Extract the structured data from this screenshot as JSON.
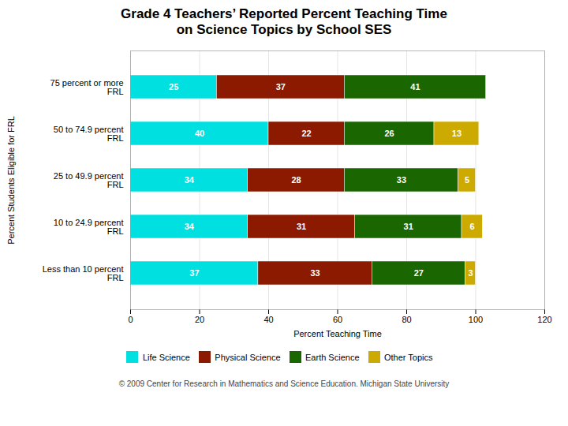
{
  "chart_data": {
    "type": "bar",
    "orientation": "horizontal",
    "stacked": true,
    "title": "Grade 4 Teachers’ Reported Percent Teaching Time",
    "subtitle": "on Science Topics by School SES",
    "caption": "© 2009 Center for Research in Mathematics and Science Education.     Michigan State University",
    "categories": [
      "75 percent or more\nFRL",
      "50 to 74.9 percent\nFRL",
      "25 to 49.9 percent\nFRL",
      "10 to 24.9 percent\nFRL",
      "Less than 10 percent\nFRL"
    ],
    "series": [
      {
        "name": "Life Science",
        "color": "#00e0e0",
        "values": [
          25,
          40,
          34,
          34,
          37
        ]
      },
      {
        "name": "Physical Science",
        "color": "#8b1a00",
        "values": [
          37,
          22,
          28,
          31,
          33
        ]
      },
      {
        "name": "Earth Science",
        "color": "#1a6600",
        "values": [
          41,
          26,
          33,
          31,
          27
        ]
      },
      {
        "name": "Other Topics",
        "color": "#ccaa00",
        "values": [
          0,
          13,
          5,
          6,
          3
        ]
      }
    ],
    "xlabel": "Percent Teaching Time",
    "ylabel": "Percent Students Eligible for FRL",
    "xlim": [
      0,
      120
    ],
    "xticks": [
      0,
      20,
      40,
      60,
      80,
      100,
      120
    ],
    "grid": true,
    "legend": "bottom",
    "data_labels": true
  }
}
